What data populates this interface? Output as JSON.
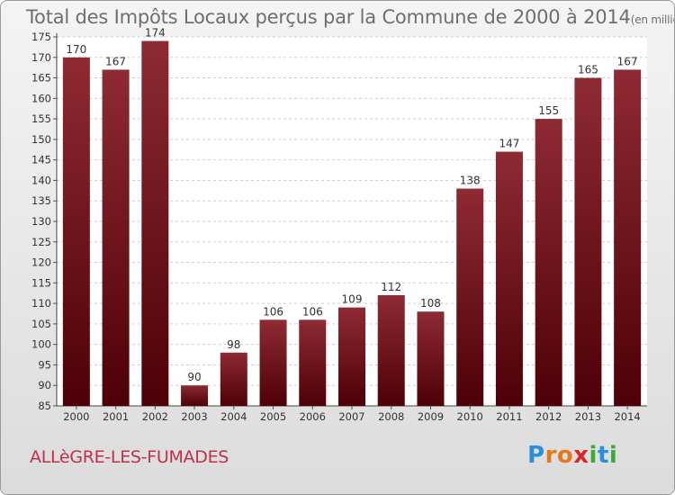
{
  "title": "Total des Impôts Locaux perçus par la Commune de 2000 à 2014",
  "title_unit": "(en milliers d'€)",
  "commune": "ALLèGRE-LES-FUMADES",
  "logo": {
    "text": "Proxiti",
    "letters": [
      {
        "char": "P",
        "color": "#2a8fd6"
      },
      {
        "char": "r",
        "color": "#e07a1a"
      },
      {
        "char": "o",
        "color": "#e07a1a"
      },
      {
        "char": "x",
        "color": "#d6282b"
      },
      {
        "char": "i",
        "color": "#3fa83a"
      },
      {
        "char": "t",
        "color": "#2a8fd6"
      },
      {
        "char": "i",
        "color": "#3fa83a"
      }
    ]
  },
  "chart_data": {
    "type": "bar",
    "title": "Total des Impôts Locaux perçus par la Commune de 2000 à 2014",
    "xlabel": "",
    "ylabel": "",
    "categories": [
      "2000",
      "2001",
      "2002",
      "2003",
      "2004",
      "2005",
      "2006",
      "2007",
      "2008",
      "2009",
      "2010",
      "2011",
      "2012",
      "2013",
      "2014"
    ],
    "values": [
      170,
      167,
      174,
      90,
      98,
      106,
      106,
      109,
      112,
      108,
      138,
      147,
      155,
      165,
      167
    ],
    "ylim": [
      85,
      175
    ],
    "yticks": [
      85,
      90,
      95,
      100,
      105,
      110,
      115,
      120,
      125,
      130,
      135,
      140,
      145,
      150,
      155,
      160,
      165,
      170,
      175
    ],
    "grid": true,
    "bar_color_top": "#8e2a33",
    "bar_color_bottom": "#4e0006"
  }
}
